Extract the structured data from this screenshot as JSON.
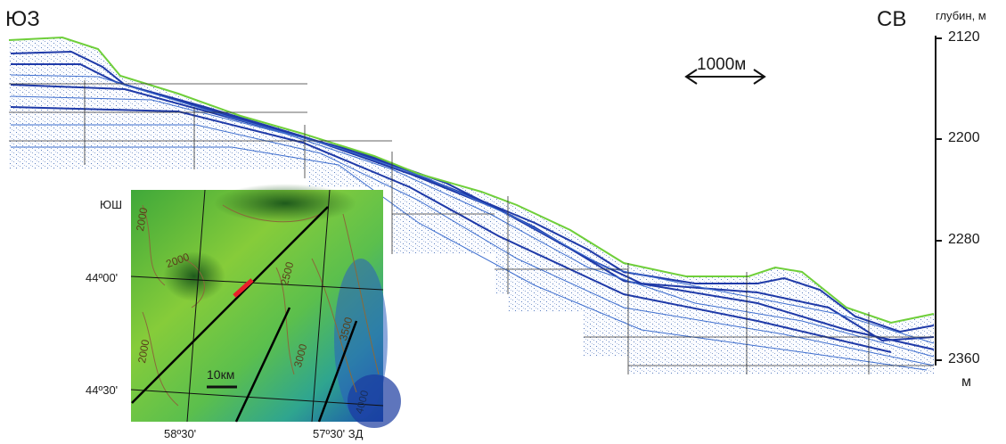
{
  "orientation": {
    "left_label": "ЮЗ",
    "right_label": "СВ"
  },
  "horizontal_scale": {
    "label": "1000м"
  },
  "depth_axis": {
    "title": "глубин, м",
    "unit": "м",
    "ticks": [
      "2120",
      "2200",
      "2280",
      "2360"
    ]
  },
  "inset_map": {
    "latitude_axis_label": "ЮШ",
    "latitude_ticks": [
      "44º00'",
      "44º30'"
    ],
    "longitude_ticks": [
      "58º30'",
      "57º30' ЗД"
    ],
    "scale_label": "10км",
    "contour_labels": [
      "2000",
      "2000",
      "2000",
      "2500",
      "3000",
      "3500",
      "4000"
    ],
    "profile_location_color": "#e8202a"
  }
}
